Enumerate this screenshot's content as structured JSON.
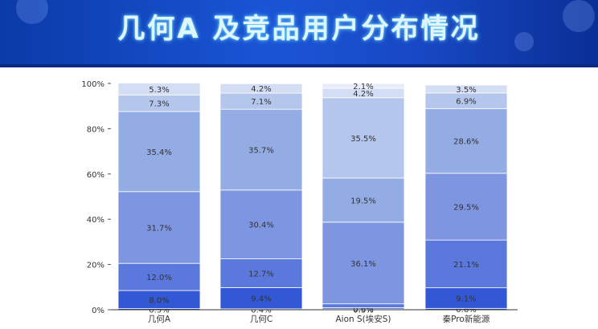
{
  "page": {
    "title": "几何A 及竞品用户分布情况"
  },
  "chart_data": {
    "type": "bar",
    "stacked": true,
    "categories": [
      "几何A",
      "几何C",
      "Aion S(埃安S)",
      "秦Pro新能源"
    ],
    "series": [
      {
        "values": [
          0.5,
          0.4,
          0.3,
          0.6
        ],
        "color": "#2346c8",
        "labels": [
          "0.5%",
          "0.4%",
          "0.3%",
          "0.6%"
        ]
      },
      {
        "values": [
          8.0,
          9.4,
          0.6,
          9.1
        ],
        "color": "#3358d6",
        "labels": [
          "8.0%",
          "9.4%",
          "0.6%",
          "9.1%"
        ]
      },
      {
        "values": [
          12.0,
          12.7,
          1.7,
          21.1
        ],
        "color": "#5b79dc",
        "labels": [
          "12.0%",
          "12.7%",
          "",
          "21.1%"
        ]
      },
      {
        "values": [
          31.7,
          30.4,
          36.1,
          29.5
        ],
        "color": "#7e95e2",
        "labels": [
          "31.7%",
          "30.4%",
          "36.1%",
          "29.5%"
        ]
      },
      {
        "values": [
          35.4,
          35.7,
          19.5,
          28.6
        ],
        "color": "#94ace4",
        "labels": [
          "35.4%",
          "35.7%",
          "19.5%",
          "28.6%"
        ]
      },
      {
        "values": [
          7.3,
          7.1,
          35.5,
          6.9
        ],
        "color": "#b4c6ec",
        "labels": [
          "7.3%",
          "7.1%",
          "35.5%",
          "6.9%"
        ]
      },
      {
        "values": [
          5.3,
          4.2,
          4.2,
          3.5
        ],
        "color": "#d3ddf4",
        "labels": [
          "5.3%",
          "4.2%",
          "4.2%",
          "3.5%"
        ]
      },
      {
        "values": [
          0,
          0,
          2.1,
          0
        ],
        "color": "#e6ecf9",
        "labels": [
          "",
          "",
          "2.1%",
          ""
        ]
      }
    ],
    "yticks": [
      "0%",
      "20%",
      "40%",
      "60%",
      "80%",
      "100%"
    ],
    "ylim": [
      0,
      100
    ],
    "grid": false,
    "legend": "none"
  }
}
